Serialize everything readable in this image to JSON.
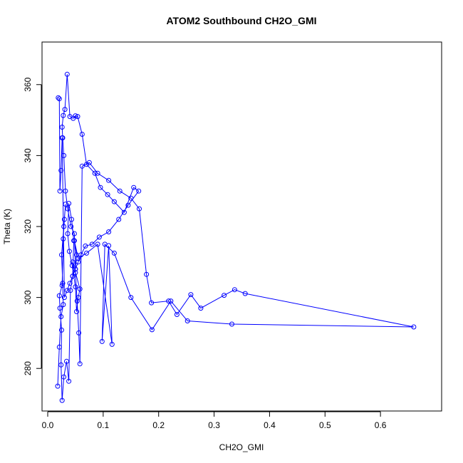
{
  "chart_data": {
    "type": "scatter",
    "title": "ATOM2 Southbound CH2O_GMI",
    "xlabel": "CH2O_GMI",
    "ylabel": "Theta (K)",
    "xlim": [
      0.0,
      0.7
    ],
    "ylim": [
      268,
      372
    ],
    "xticks": [
      0.0,
      0.1,
      0.2,
      0.3,
      0.4,
      0.5,
      0.6
    ],
    "xtick_labels": [
      "0.0",
      "0.1",
      "0.2",
      "0.3",
      "0.4",
      "0.5",
      "0.6"
    ],
    "yticks": [
      280,
      300,
      320,
      340,
      360
    ],
    "ytick_labels": [
      "280",
      "300",
      "320",
      "340",
      "360"
    ],
    "grid": false,
    "series_color": "#0000ff",
    "series": [
      {
        "markers": "open-circle",
        "line": true,
        "x": [
          0.018,
          0.021,
          0.024,
          0.028,
          0.027,
          0.025,
          0.029,
          0.032,
          0.03,
          0.028,
          0.026,
          0.021,
          0.022,
          0.025,
          0.024,
          0.026,
          0.029,
          0.034,
          0.038,
          0.041,
          0.045,
          0.047,
          0.043,
          0.038,
          0.036,
          0.039,
          0.044,
          0.05,
          0.052,
          0.055,
          0.058,
          0.045,
          0.05,
          0.053,
          0.056,
          0.058,
          0.062,
          0.075,
          0.09,
          0.11,
          0.13,
          0.15,
          0.165,
          0.178,
          0.187,
          0.218,
          0.233,
          0.258,
          0.276,
          0.318,
          0.337,
          0.356,
          0.66,
          0.332,
          0.252,
          0.222,
          0.188,
          0.15,
          0.12,
          0.103,
          0.098,
          0.11,
          0.116,
          0.09,
          0.07,
          0.055,
          0.048,
          0.052,
          0.05,
          0.048,
          0.042,
          0.036,
          0.032,
          0.029,
          0.027,
          0.026,
          0.028,
          0.031,
          0.035,
          0.04,
          0.046,
          0.05,
          0.054,
          0.062,
          0.07,
          0.085,
          0.095,
          0.108,
          0.12,
          0.138,
          0.155,
          0.164,
          0.145,
          0.128,
          0.11,
          0.093,
          0.08,
          0.068,
          0.06,
          0.055,
          0.05,
          0.045,
          0.04,
          0.035,
          0.03,
          0.026,
          0.024,
          0.022,
          0.021,
          0.019
        ],
        "y": [
          275.0,
          286.0,
          294.6,
          298.0,
          304.0,
          312.0,
          320.0,
          326.3,
          322.0,
          316.5,
          303.4,
          300.5,
          297.0,
          290.8,
          281.0,
          271.0,
          277.6,
          282.0,
          276.4,
          302.0,
          306.0,
          316.0,
          322.0,
          326.5,
          318.0,
          313.0,
          309.0,
          303.0,
          296.0,
          300.0,
          302.4,
          310.0,
          307.0,
          299.0,
          290.0,
          281.3,
          337.0,
          338.0,
          335.0,
          333.0,
          330.0,
          328.0,
          325.0,
          306.5,
          298.5,
          299.0,
          295.2,
          300.8,
          297.0,
          300.6,
          302.2,
          301.1,
          291.7,
          292.5,
          293.4,
          299.0,
          290.9,
          300.0,
          312.5,
          315.0,
          287.6,
          314.6,
          286.8,
          315.0,
          312.5,
          311.0,
          316.0,
          312.0,
          308.0,
          318.0,
          320.0,
          325.0,
          330.0,
          340.0,
          345.0,
          348.0,
          351.3,
          353.0,
          362.9,
          351.0,
          350.5,
          351.2,
          351.0,
          346.0,
          337.5,
          335.0,
          331.0,
          329.0,
          327.0,
          324.0,
          331.0,
          330.0,
          326.0,
          322.0,
          318.5,
          317.0,
          315.0,
          314.5,
          312.0,
          310.0,
          308.0,
          306.0,
          304.0,
          302.0,
          300.0,
          345.0,
          335.8,
          330.0,
          356.0,
          356.3
        ]
      }
    ]
  }
}
